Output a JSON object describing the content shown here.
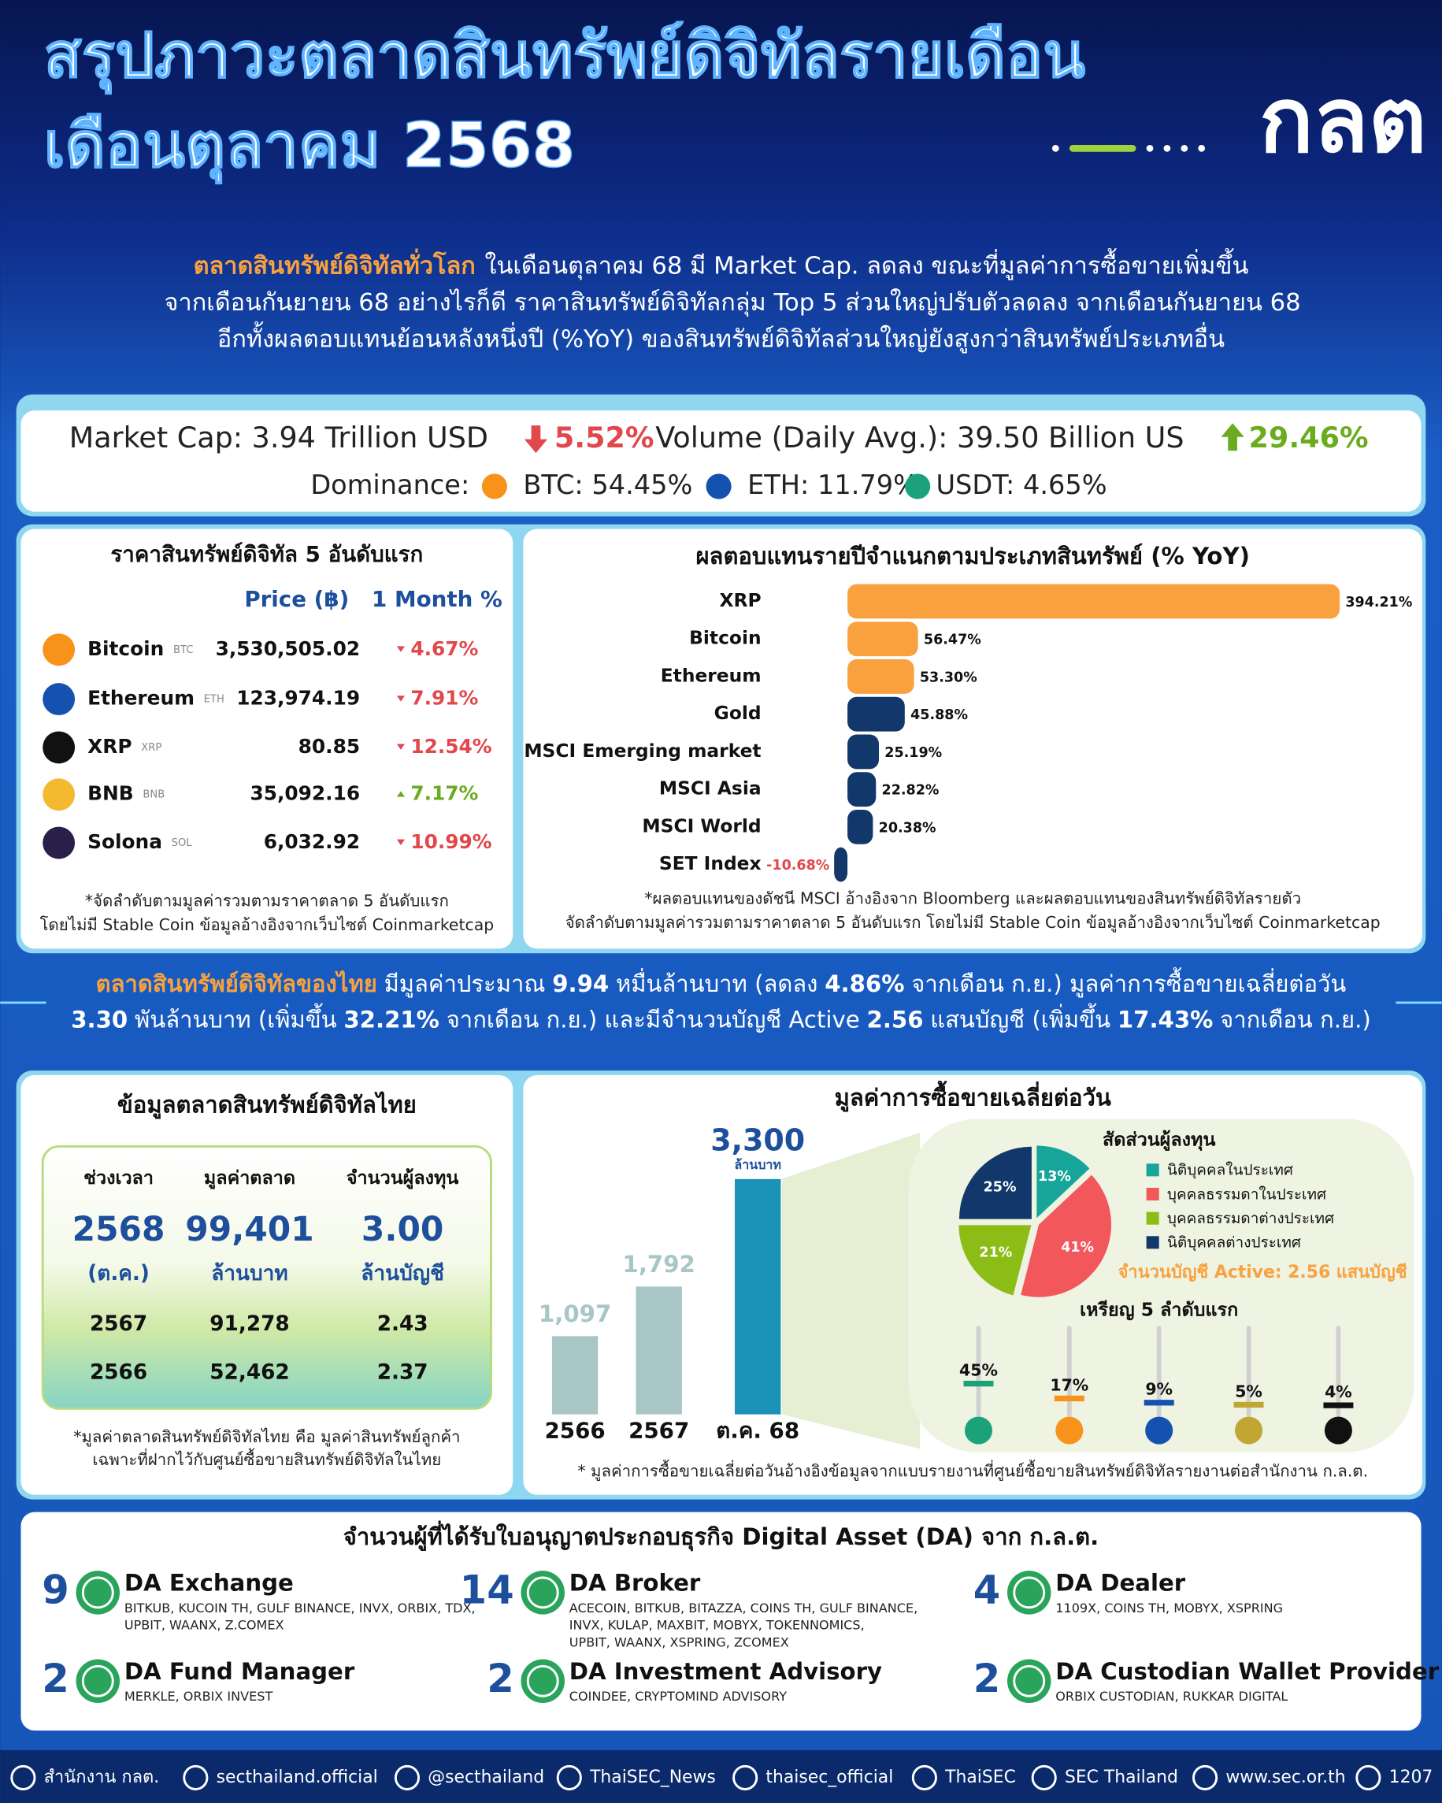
{
  "header": {
    "title_line1": "สรุปภาวะตลาดสินทรัพย์ดิจิทัลรายเดือน",
    "title_line2": "เดือนตุลาคม 2568",
    "logo": "กลต"
  },
  "global_summary": {
    "highlight": "ตลาดสินทรัพย์ดิจิทัลทั่วโลก",
    "line1": "ในเดือนตุลาคม 68 มี Market Cap. ลดลง ขณะที่มูลค่าการซื้อขายเพิ่มขึ้น",
    "line2": "จากเดือนกันยายน 68 อย่างไรก็ดี ราคาสินทรัพย์ดิจิทัลกลุ่ม Top 5 ส่วนใหญ่ปรับตัวลดลง จากเดือนกันยายน 68",
    "line3": "อีกทั้งผลตอบแทนย้อนหลังหนึ่งปี (%YoY) ของสินทรัพย์ดิจิทัลส่วนใหญ่ยังสูงกว่าสินทรัพย์ประเภทอื่น"
  },
  "market_stats": {
    "market_cap": "Market Cap: 3.94 Trillion USD",
    "market_cap_change": "5.52%",
    "volume": "Volume (Daily Avg.): 39.50 Billion US",
    "volume_change": "29.46%",
    "dominance_label": "Dominance:",
    "dominance": [
      "BTC: 54.45%",
      "ETH: 11.79%",
      "USDT: 4.65%"
    ]
  },
  "top5": {
    "title": "ราคาสินทรัพย์ดิจิทัล 5 อันดับแรก",
    "headers": [
      "Price (฿)",
      "1 Month %"
    ],
    "rows": [
      {
        "name": "Bitcoin",
        "symbol": "BTC",
        "price": "3,530,505.02",
        "change": "4.67%",
        "direction": "down"
      },
      {
        "name": "Ethereum",
        "symbol": "ETH",
        "price": "123,974.19",
        "change": "7.91%",
        "direction": "down"
      },
      {
        "name": "XRP",
        "symbol": "XRP",
        "price": "80.85",
        "change": "12.54%",
        "direction": "down"
      },
      {
        "name": "BNB",
        "symbol": "BNB",
        "price": "35,092.16",
        "change": "7.17%",
        "direction": "up"
      },
      {
        "name": "Solona",
        "symbol": "SOL",
        "price": "6,032.92",
        "change": "10.99%",
        "direction": "down"
      }
    ],
    "notes": [
      "*จัดลำดับตามมูลค่ารวมตามราคาตลาด 5 อันดับแรก",
      "โดยไม่มี Stable Coin ข้อมูลอ้างอิงจากเว็บไซต์ Coinmarketcap"
    ]
  },
  "chart_data": [
    {
      "type": "bar",
      "horizontal": true,
      "title": "ผลตอบแทนรายปีจำแนกตามประเภทสินทรัพย์ (% YoY)",
      "categories": [
        "XRP",
        "Bitcoin",
        "Ethereum",
        "Gold",
        "MSCI Emerging market",
        "MSCI Asia",
        "MSCI World",
        "SET Index"
      ],
      "values": [
        394.21,
        56.47,
        53.3,
        45.88,
        25.19,
        22.82,
        20.38,
        -10.68
      ],
      "value_labels": [
        "394.21%",
        "56.47%",
        "53.30%",
        "45.88%",
        "25.19%",
        "22.82%",
        "20.38%",
        "-10.68%"
      ],
      "colors": [
        "#f9a13e",
        "#f9a13e",
        "#f9a13e",
        "#12376a",
        "#12376a",
        "#12376a",
        "#12376a",
        "#12376a"
      ],
      "notes": [
        "*ผลตอบแทนของดัชนี MSCI อ้างอิงจาก Bloomberg และผลตอบแทนของสินทรัพย์ดิจิทัลรายตัว",
        "จัดลำดับตามมูลค่ารวมตามราคาตลาด 5 อันดับแรก โดยไม่มี Stable Coin ข้อมูลอ้างอิงจากเว็บไซต์ Coinmarketcap"
      ]
    },
    {
      "type": "bar",
      "horizontal": false,
      "title": "มูลค่าการซื้อขายเฉลี่ยต่อวัน",
      "categories": [
        "2566",
        "2567",
        "ต.ค. 68"
      ],
      "values": [
        1097,
        1792,
        3300
      ],
      "value_labels": [
        "1,097",
        "1,792",
        "3,300"
      ],
      "unit": "ล้านบาท",
      "colors": [
        "#a8c6c6",
        "#a8c6c6",
        "#1a93b6"
      ],
      "note": "* มูลค่าการซื้อขายเฉลี่ยต่อวันอ้างอิงข้อมูลจากแบบรายงานที่ศูนย์ซื้อขายสินทรัพย์ดิจิทัลรายงานต่อสำนักงาน ก.ล.ต."
    },
    {
      "type": "pie",
      "title": "สัดส่วนผู้ลงทุน",
      "categories": [
        "นิติบุคคลในประเทศ",
        "บุคคลธรรมดาในประเทศ",
        "บุคคลธรรมดาต่างประเทศ",
        "นิติบุคคลต่างประเทศ"
      ],
      "values": [
        13,
        41,
        21,
        25
      ],
      "value_labels": [
        "13%",
        "41%",
        "21%",
        "25%"
      ],
      "colors": [
        "#17a59a",
        "#f2575c",
        "#8cbd17",
        "#12376a"
      ],
      "note": "จำนวนบัญชี Active: 2.56 แสนบัญชี"
    },
    {
      "type": "lollipop",
      "title": "เหรียญ 5 ลำดับแรก",
      "values": [
        45,
        17,
        9,
        5,
        4
      ],
      "value_labels": [
        "45%",
        "17%",
        "9%",
        "5%",
        "4%"
      ],
      "colors": [
        "#1ba27a",
        "#f7931a",
        "#1552b0",
        "#c2a633",
        "#111111"
      ]
    }
  ],
  "thai_summary": {
    "line1": [
      "ตลาดสินทรัพย์ดิจิทัลของไทย",
      "มีมูลค่าประมาณ",
      "9.94",
      "หมื่นล้านบาท (ลดลง",
      "4.86%",
      "จากเดือน ก.ย.) มูลค่าการซื้อขายเฉลี่ยต่อวัน"
    ],
    "line2": [
      "3.30",
      "พันล้านบาท (เพิ่มขึ้น",
      "32.21%",
      "จากเดือน ก.ย.) และมีจำนวนบัญชี Active",
      "2.56",
      "แสนบัญชี (เพิ่มขึ้น",
      "17.43%",
      "จากเดือน ก.ย.)"
    ]
  },
  "thai_market": {
    "title": "ข้อมูลตลาดสินทรัพย์ดิจิทัลไทย",
    "headers": [
      "ช่วงเวลา",
      "มูลค่าตลาด",
      "จำนวนผู้ลงทุน"
    ],
    "current": [
      "2568",
      "99,401",
      "3.00"
    ],
    "current_sub": [
      "(ต.ค.)",
      "ล้านบาท",
      "ล้านบัญชี"
    ],
    "rows": [
      [
        "2567",
        "91,278",
        "2.43"
      ],
      [
        "2566",
        "52,462",
        "2.37"
      ]
    ],
    "notes": [
      "*มูลค่าตลาดสินทรัพย์ดิจิทัลไทย คือ มูลค่าสินทรัพย์ลูกค้า",
      "เฉพาะที่ฝากไว้กับศูนย์ซื้อขายสินทรัพย์ดิจิทัลในไทย"
    ]
  },
  "licenses": {
    "title": "จำนวนผู้ที่ได้รับใบอนุญาตประกอบธุรกิจ Digital Asset (DA) จาก ก.ล.ต.",
    "items": [
      {
        "count": 9,
        "name": "DA Exchange",
        "members": [
          "BITKUB, KUCOIN TH, GULF BINANCE, INVX, ORBIX, TDX,",
          "UPBIT, WAANX, Z.COMEX"
        ]
      },
      {
        "count": 14,
        "name": "DA Broker",
        "members": [
          "ACECOIN, BITKUB, BITAZZA, COINS TH, GULF BINANCE,",
          "INVX, KULAP, MAXBIT, MOBYX, TOKENNOMICS,",
          "UPBIT, WAANX, XSPRING, ZCOMEX"
        ]
      },
      {
        "count": 4,
        "name": "DA Dealer",
        "members": [
          "1109X, COINS TH, MOBYX, XSPRING"
        ]
      },
      {
        "count": 2,
        "name": "DA Fund Manager",
        "members": [
          "MERKLE, ORBIX INVEST"
        ]
      },
      {
        "count": 2,
        "name": "DA Investment Advisory",
        "members": [
          "COINDEE, CRYPTOMIND ADVISORY"
        ]
      },
      {
        "count": 2,
        "name": "DA Custodian Wallet Provider",
        "members": [
          "ORBIX CUSTODIAN, RUKKAR DIGITAL"
        ]
      }
    ]
  },
  "footer": [
    "สำนักงาน กลต.",
    "secthailand.official",
    "@secthailand",
    "ThaiSEC_News",
    "thaisec_official",
    "ThaiSEC",
    "SEC Thailand",
    "www.sec.or.th",
    "1207"
  ]
}
